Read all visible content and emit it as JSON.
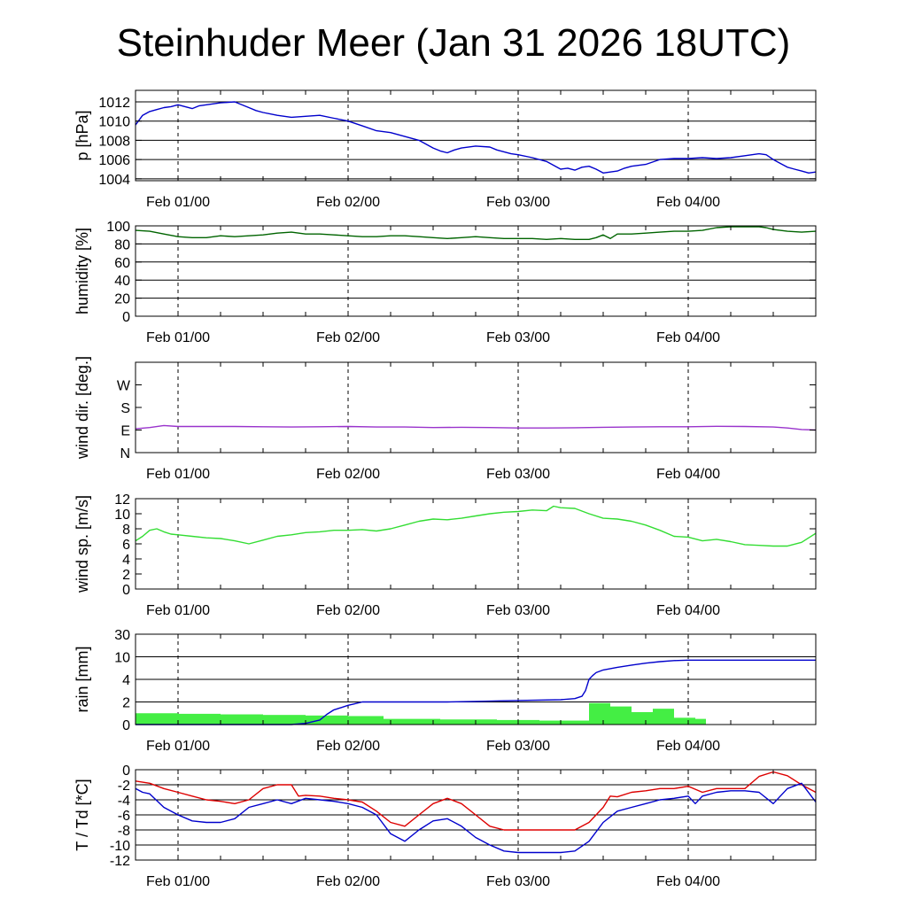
{
  "title": "Steinhuder Meer (Jan 31 2026 18UTC)",
  "chart_data": {
    "type": "line",
    "x_unit": "hours since Jan 31 18UTC",
    "x_range": [
      0,
      96
    ],
    "x_ticks": [
      {
        "hour": 6,
        "label": "Feb 01/00"
      },
      {
        "hour": 30,
        "label": "Feb 02/00"
      },
      {
        "hour": 54,
        "label": "Feb 03/00"
      },
      {
        "hour": 78,
        "label": "Feb 04/00"
      }
    ],
    "panels": [
      {
        "key": "pressure",
        "ylabel": "p [hPa]",
        "scale": "linear",
        "ylim": [
          1003.8,
          1013.2
        ],
        "ticks": [
          1004,
          1006,
          1008,
          1010,
          1012
        ],
        "tick_labels": [
          "1004",
          "1006",
          "1008",
          "1010",
          "1012"
        ],
        "gridlines": [
          1004,
          1006,
          1008,
          1010,
          1012
        ],
        "series": [
          {
            "name": "pressure",
            "color": "#0000cc",
            "x": [
              0,
              1,
              2,
              3,
              4,
              5,
              6,
              7,
              8,
              9,
              10,
              11,
              12,
              14,
              16,
              17,
              18,
              20,
              22,
              24,
              26,
              28,
              30,
              32,
              34,
              36,
              38,
              40,
              42,
              43,
              44,
              45,
              46,
              48,
              50,
              51,
              52,
              53,
              54,
              56,
              58,
              59,
              60,
              61,
              62,
              63,
              64,
              65,
              66,
              68,
              69,
              70,
              72,
              74,
              76,
              78,
              80,
              82,
              84,
              86,
              88,
              89,
              90,
              91,
              92,
              93,
              94,
              95,
              96
            ],
            "y": [
              1009.6,
              1010.6,
              1011.0,
              1011.2,
              1011.4,
              1011.5,
              1011.7,
              1011.5,
              1011.3,
              1011.6,
              1011.7,
              1011.8,
              1011.9,
              1012.0,
              1011.4,
              1011.1,
              1010.9,
              1010.6,
              1010.4,
              1010.5,
              1010.6,
              1010.3,
              1010.0,
              1009.5,
              1009.0,
              1008.8,
              1008.4,
              1008.0,
              1007.2,
              1006.9,
              1006.7,
              1007.0,
              1007.2,
              1007.4,
              1007.3,
              1007.0,
              1006.8,
              1006.6,
              1006.5,
              1006.2,
              1005.8,
              1005.4,
              1005.0,
              1005.1,
              1004.9,
              1005.2,
              1005.3,
              1005.0,
              1004.6,
              1004.8,
              1005.1,
              1005.3,
              1005.5,
              1006.0,
              1006.1,
              1006.1,
              1006.2,
              1006.1,
              1006.2,
              1006.4,
              1006.6,
              1006.5,
              1006.0,
              1005.6,
              1005.2,
              1005.0,
              1004.8,
              1004.6,
              1004.7
            ]
          }
        ]
      },
      {
        "key": "humidity",
        "ylabel": "humidity [%]",
        "scale": "linear",
        "ylim": [
          0,
          100
        ],
        "ticks": [
          0,
          20,
          40,
          60,
          80,
          100
        ],
        "tick_labels": [
          "0",
          "20",
          "40",
          "60",
          "80",
          "100"
        ],
        "gridlines": [
          20,
          40,
          60,
          80,
          100
        ],
        "series": [
          {
            "name": "humidity",
            "color": "#006400",
            "x": [
              0,
              2,
              4,
              6,
              8,
              10,
              12,
              14,
              16,
              18,
              20,
              22,
              24,
              26,
              28,
              30,
              32,
              34,
              36,
              38,
              40,
              42,
              44,
              46,
              48,
              50,
              52,
              54,
              56,
              58,
              60,
              62,
              64,
              65,
              66,
              67,
              68,
              70,
              72,
              74,
              76,
              78,
              80,
              82,
              84,
              86,
              88,
              89,
              90,
              92,
              94,
              96
            ],
            "y": [
              95,
              94,
              91,
              88,
              87,
              87,
              89,
              88,
              89,
              90,
              92,
              93,
              91,
              91,
              90,
              89,
              88,
              88,
              89,
              89,
              88,
              87,
              86,
              87,
              88,
              87,
              86,
              86,
              86,
              85,
              86,
              85,
              85,
              87,
              90,
              86,
              91,
              91,
              92,
              93,
              94,
              94,
              95,
              98,
              99,
              99,
              99,
              98,
              96,
              94,
              93,
              94
            ]
          }
        ]
      },
      {
        "key": "wind_dir",
        "ylabel": "wind dir. [deg.]",
        "scale": "linear",
        "ylim": [
          0,
          360
        ],
        "ticks": [
          0,
          90,
          180,
          270
        ],
        "tick_labels": [
          "N",
          "E",
          "S",
          "W"
        ],
        "gridlines": [],
        "series": [
          {
            "name": "wind direction",
            "color": "#9933cc",
            "x": [
              0,
              2,
              4,
              6,
              10,
              14,
              18,
              22,
              26,
              30,
              34,
              38,
              42,
              46,
              50,
              54,
              58,
              62,
              66,
              70,
              74,
              78,
              82,
              86,
              90,
              92,
              94,
              96
            ],
            "y": [
              95,
              100,
              108,
              104,
              104,
              104,
              103,
              102,
              103,
              104,
              102,
              102,
              100,
              101,
              100,
              98,
              98,
              99,
              101,
              102,
              103,
              103,
              105,
              104,
              102,
              98,
              92,
              90
            ]
          }
        ]
      },
      {
        "key": "wind_speed",
        "ylabel": "wind sp. [m/s]",
        "scale": "linear",
        "ylim": [
          0,
          12
        ],
        "ticks": [
          0,
          2,
          4,
          6,
          8,
          10,
          12
        ],
        "tick_labels": [
          "0",
          "2",
          "4",
          "6",
          "8",
          "10",
          "12"
        ],
        "gridlines": [],
        "series": [
          {
            "name": "wind speed",
            "color": "#33dd33",
            "x": [
              0,
              1,
              2,
              3,
              4,
              5,
              6,
              8,
              10,
              12,
              14,
              16,
              18,
              20,
              22,
              24,
              26,
              28,
              30,
              32,
              34,
              36,
              38,
              40,
              42,
              44,
              46,
              48,
              50,
              52,
              54,
              56,
              58,
              59,
              60,
              62,
              64,
              66,
              68,
              70,
              72,
              74,
              76,
              78,
              80,
              82,
              84,
              86,
              88,
              90,
              92,
              94,
              95,
              96
            ],
            "y": [
              6.4,
              7.0,
              7.8,
              8.0,
              7.6,
              7.3,
              7.2,
              7.0,
              6.8,
              6.7,
              6.4,
              6.0,
              6.5,
              7.0,
              7.2,
              7.5,
              7.6,
              7.8,
              7.8,
              7.9,
              7.7,
              8.0,
              8.5,
              9.0,
              9.3,
              9.2,
              9.4,
              9.7,
              10.0,
              10.2,
              10.3,
              10.5,
              10.4,
              11.0,
              10.8,
              10.7,
              10.0,
              9.4,
              9.3,
              9.0,
              8.5,
              7.8,
              7.0,
              6.9,
              6.4,
              6.6,
              6.3,
              5.9,
              5.8,
              5.7,
              5.7,
              6.2,
              6.8,
              7.4
            ]
          }
        ]
      },
      {
        "key": "rain",
        "ylabel": "rain [mm]",
        "scale": "quasi-log",
        "ylim": [
          0,
          30
        ],
        "ticks": [
          0,
          2,
          4,
          10,
          30
        ],
        "tick_labels": [
          "0",
          "2",
          "4",
          "10",
          "30"
        ],
        "gridlines": [
          2,
          4,
          10,
          30
        ],
        "bars": {
          "name": "rain per period",
          "color": "#44ee44",
          "x_start": [
            0,
            6,
            12,
            18,
            24,
            30,
            35,
            43,
            51,
            57,
            64,
            67,
            70,
            73,
            76,
            79
          ],
          "x_end": [
            6,
            12,
            18,
            24,
            30,
            35,
            43,
            51,
            57,
            64,
            67,
            70,
            73,
            76,
            79,
            80.5
          ],
          "values": [
            1.0,
            0.95,
            0.9,
            0.85,
            0.8,
            0.75,
            0.5,
            0.45,
            0.4,
            0.35,
            1.9,
            1.6,
            1.1,
            1.4,
            0.6,
            0.5
          ]
        },
        "series": [
          {
            "name": "accumulated rain",
            "color": "#0000cc",
            "x": [
              0,
              2,
              4,
              6,
              8,
              10,
              14,
              18,
              22,
              24,
              26,
              27,
              28,
              29,
              30,
              31,
              32,
              34,
              36,
              40,
              44,
              48,
              52,
              56,
              60,
              62,
              63,
              63.5,
              64,
              64.5,
              65,
              66,
              68,
              70,
              72,
              74,
              76,
              78,
              80,
              84,
              88,
              92,
              96
            ],
            "y": [
              0,
              0,
              0,
              0,
              0,
              0,
              0,
              0,
              0,
              0.1,
              0.4,
              0.9,
              1.3,
              1.5,
              1.7,
              1.85,
              2.0,
              2.0,
              2.0,
              2.0,
              2.0,
              2.05,
              2.1,
              2.15,
              2.2,
              2.3,
              2.5,
              3.0,
              4.0,
              5.0,
              5.8,
              6.5,
              7.2,
              7.8,
              8.3,
              8.7,
              9.0,
              9.1,
              9.1,
              9.1,
              9.1,
              9.1,
              9.1
            ]
          }
        ]
      },
      {
        "key": "temperature",
        "ylabel": "T / Td [*C]",
        "scale": "linear",
        "ylim": [
          -12,
          0
        ],
        "ticks": [
          -12,
          -10,
          -8,
          -6,
          -4,
          -2,
          0
        ],
        "tick_labels": [
          "-12",
          "-10",
          "-8",
          "-6",
          "-4",
          "-2",
          "0"
        ],
        "gridlines": [
          -10,
          -8,
          -6,
          -4,
          -2
        ],
        "series": [
          {
            "name": "T",
            "color": "#dd0000",
            "x": [
              0,
              2,
              4,
              6,
              8,
              10,
              12,
              14,
              16,
              18,
              20,
              22,
              23,
              24,
              26,
              28,
              30,
              32,
              34,
              36,
              38,
              40,
              42,
              44,
              46,
              48,
              50,
              52,
              54,
              56,
              58,
              60,
              62,
              64,
              66,
              67,
              68,
              70,
              72,
              74,
              76,
              78,
              80,
              82,
              84,
              86,
              88,
              90,
              92,
              94,
              96
            ],
            "y": [
              -1.5,
              -1.8,
              -2.5,
              -3.0,
              -3.5,
              -4.0,
              -4.2,
              -4.5,
              -4.0,
              -2.5,
              -2.0,
              -2.0,
              -3.5,
              -3.4,
              -3.5,
              -3.8,
              -4.0,
              -4.3,
              -5.5,
              -7.0,
              -7.5,
              -6.0,
              -4.5,
              -3.8,
              -4.5,
              -6.0,
              -7.5,
              -8.0,
              -8.0,
              -8.0,
              -8.0,
              -8.0,
              -8.0,
              -7.0,
              -5.0,
              -3.5,
              -3.6,
              -3.0,
              -2.8,
              -2.5,
              -2.5,
              -2.2,
              -3.0,
              -2.5,
              -2.5,
              -2.5,
              -0.9,
              -0.3,
              -0.8,
              -2.0,
              -3.0
            ]
          },
          {
            "name": "Td",
            "color": "#0000cc",
            "x": [
              0,
              1,
              2,
              4,
              6,
              8,
              10,
              12,
              14,
              16,
              18,
              20,
              22,
              24,
              26,
              28,
              30,
              32,
              34,
              36,
              38,
              40,
              42,
              44,
              46,
              48,
              50,
              52,
              54,
              56,
              58,
              60,
              62,
              64,
              66,
              68,
              70,
              72,
              74,
              76,
              78,
              79,
              80,
              82,
              84,
              86,
              88,
              90,
              92,
              94,
              96
            ],
            "y": [
              -2.5,
              -3.0,
              -3.2,
              -5.0,
              -6.0,
              -6.8,
              -7.0,
              -7.0,
              -6.5,
              -5.0,
              -4.5,
              -4.0,
              -4.5,
              -3.8,
              -4.0,
              -4.2,
              -4.5,
              -5.0,
              -6.0,
              -8.5,
              -9.5,
              -8.0,
              -6.8,
              -6.5,
              -7.5,
              -9.0,
              -10.0,
              -10.8,
              -11.0,
              -11.0,
              -11.0,
              -11.0,
              -10.8,
              -9.5,
              -7.0,
              -5.5,
              -5.0,
              -4.5,
              -4.0,
              -3.8,
              -3.5,
              -4.5,
              -3.5,
              -3.0,
              -2.8,
              -2.8,
              -3.0,
              -4.5,
              -2.5,
              -1.8,
              -4.3
            ]
          }
        ]
      }
    ]
  }
}
